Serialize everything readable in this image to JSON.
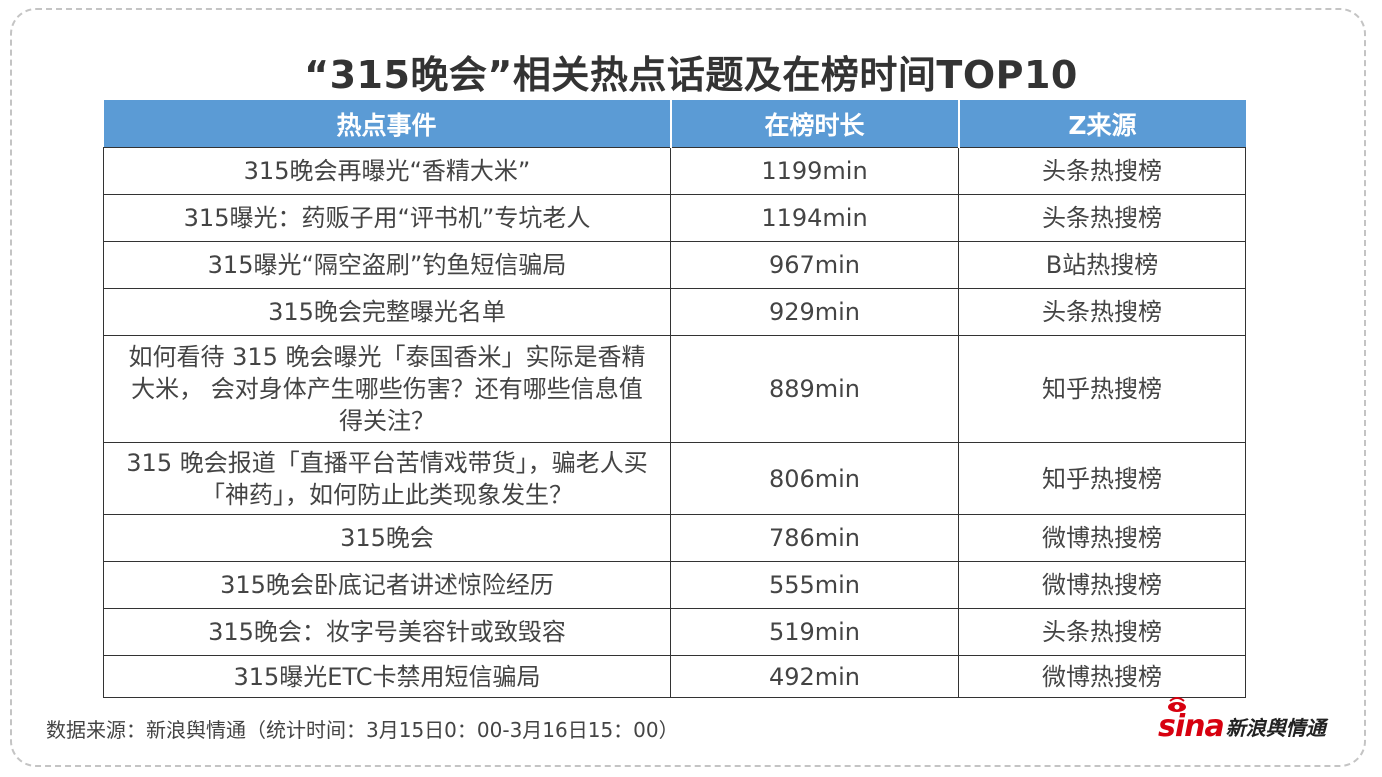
{
  "title": "“315晚会”相关热点话题及在榜时间TOP10",
  "table": {
    "headers": [
      "热点事件",
      "在榜时长",
      "Z来源"
    ],
    "rows": [
      {
        "event": "315晚会再曝光“香精大米”",
        "duration": "1199min",
        "source": "头条热搜榜"
      },
      {
        "event": "315曝光：药贩子用“评书机”专坑老人",
        "duration": "1194min",
        "source": "头条热搜榜"
      },
      {
        "event": "315曝光“隔空盗刷”钓鱼短信骗局",
        "duration": "967min",
        "source": "B站热搜榜"
      },
      {
        "event": "315晚会完整曝光名单",
        "duration": "929min",
        "source": "头条热搜榜"
      },
      {
        "event": "如何看待 315 晚会曝光「泰国香米」实际是香精大米， 会对身体产生哪些伤害？还有哪些信息值得关注？",
        "duration": "889min",
        "source": "知乎热搜榜"
      },
      {
        "event": "315 晚会报道「直播平台苦情戏带货」，骗老人买「神药」，如何防止此类现象发生？",
        "duration": "806min",
        "source": "知乎热搜榜"
      },
      {
        "event": "315晚会",
        "duration": "786min",
        "source": "微博热搜榜"
      },
      {
        "event": "315晚会卧底记者讲述惊险经历",
        "duration": "555min",
        "source": "微博热搜榜"
      },
      {
        "event": "315晚会：妆字号美容针或致毁容",
        "duration": "519min",
        "source": "头条热搜榜"
      },
      {
        "event": "315曝光ETC卡禁用短信骗局",
        "duration": "492min",
        "source": "微博热搜榜"
      }
    ]
  },
  "footer": "数据来源：新浪舆情通（统计时间：3月15日0：00-3月16日15：00）",
  "logo": {
    "brand": "sina",
    "name": "新浪舆情通",
    "icon": "sina-eye-icon",
    "color": "#d7000f"
  },
  "colors": {
    "header_bg": "#5b9bd5",
    "header_text": "#ffffff"
  }
}
